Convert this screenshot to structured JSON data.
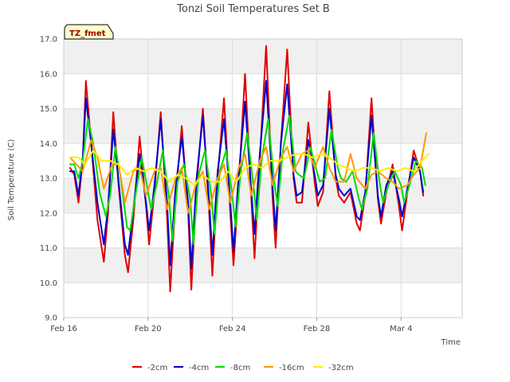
{
  "chart_data": {
    "type": "line",
    "title": "Tonzi Soil Temperatures Set B",
    "xlabel": "Time",
    "ylabel": "Soil Temperature (C)",
    "annotation": "TZ_fmet",
    "xlim": [
      0,
      18.9
    ],
    "ylim": [
      9.0,
      17.0
    ],
    "yticks": [
      {
        "value": 9.0,
        "label": "9.0"
      },
      {
        "value": 10.0,
        "label": "10.0"
      },
      {
        "value": 11.0,
        "label": "11.0"
      },
      {
        "value": 12.0,
        "label": "12.0"
      },
      {
        "value": 13.0,
        "label": "13.0"
      },
      {
        "value": 14.0,
        "label": "14.0"
      },
      {
        "value": 15.0,
        "label": "15.0"
      },
      {
        "value": 16.0,
        "label": "16.0"
      },
      {
        "value": 17.0,
        "label": "17.0"
      }
    ],
    "xticks": [
      {
        "value": 0,
        "label": "Feb 16"
      },
      {
        "value": 4,
        "label": "Feb 20"
      },
      {
        "value": 8,
        "label": "Feb 24"
      },
      {
        "value": 12,
        "label": "Feb 28"
      },
      {
        "value": 16,
        "label": "Mar 4"
      }
    ],
    "x_units": "days since Feb 16",
    "legend_position": "bottom",
    "grid": true,
    "series": [
      {
        "name": "-2cm",
        "color": "#e00000",
        "x": [
          0.3,
          0.5,
          0.7,
          0.9,
          1.05,
          1.3,
          1.6,
          1.9,
          2.1,
          2.35,
          2.6,
          2.9,
          3.05,
          3.3,
          3.6,
          3.9,
          4.05,
          4.3,
          4.6,
          4.9,
          5.05,
          5.3,
          5.6,
          5.9,
          6.05,
          6.3,
          6.6,
          6.9,
          7.05,
          7.3,
          7.6,
          7.9,
          8.05,
          8.3,
          8.6,
          8.9,
          9.05,
          9.3,
          9.6,
          9.9,
          10.05,
          10.3,
          10.6,
          10.9,
          11.05,
          11.3,
          11.6,
          11.9,
          12.05,
          12.3,
          12.6,
          12.9,
          13.05,
          13.3,
          13.6,
          13.9,
          14.05,
          14.3,
          14.6,
          14.9,
          15.05,
          15.3,
          15.6,
          15.9,
          16.05,
          16.3,
          16.6,
          16.9,
          17.05
        ],
        "values": [
          13.3,
          13.1,
          12.3,
          13.5,
          15.8,
          14.0,
          11.8,
          10.6,
          12.0,
          14.9,
          12.8,
          10.8,
          10.3,
          11.8,
          14.2,
          12.2,
          11.1,
          12.6,
          14.9,
          11.9,
          9.75,
          12.4,
          14.5,
          12.0,
          9.8,
          12.8,
          15.0,
          12.0,
          10.2,
          13.0,
          15.3,
          12.0,
          10.5,
          12.8,
          16.0,
          12.4,
          10.7,
          13.5,
          16.8,
          12.5,
          11.0,
          14.0,
          16.7,
          13.0,
          12.3,
          12.3,
          14.6,
          12.9,
          12.2,
          12.6,
          15.5,
          13.0,
          12.5,
          12.3,
          12.6,
          11.7,
          11.5,
          12.5,
          15.3,
          12.4,
          11.7,
          12.6,
          13.4,
          12.2,
          11.5,
          12.6,
          13.8,
          13.2,
          12.5
        ]
      },
      {
        "name": "-4cm",
        "color": "#0000cc",
        "x": [
          0.3,
          0.5,
          0.7,
          0.9,
          1.05,
          1.3,
          1.6,
          1.9,
          2.1,
          2.35,
          2.6,
          2.9,
          3.05,
          3.3,
          3.6,
          3.9,
          4.05,
          4.3,
          4.6,
          4.9,
          5.05,
          5.3,
          5.6,
          5.9,
          6.05,
          6.3,
          6.6,
          6.9,
          7.05,
          7.3,
          7.6,
          7.9,
          8.05,
          8.3,
          8.6,
          8.9,
          9.05,
          9.3,
          9.6,
          9.9,
          10.05,
          10.3,
          10.6,
          10.9,
          11.05,
          11.3,
          11.6,
          11.9,
          12.05,
          12.3,
          12.6,
          12.9,
          13.05,
          13.3,
          13.6,
          13.9,
          14.05,
          14.3,
          14.6,
          14.9,
          15.05,
          15.3,
          15.6,
          15.9,
          16.05,
          16.3,
          16.6,
          16.9,
          17.05
        ],
        "values": [
          13.2,
          13.2,
          12.5,
          13.6,
          15.3,
          14.0,
          12.3,
          11.1,
          12.2,
          14.4,
          12.9,
          11.1,
          10.8,
          12.1,
          13.7,
          12.3,
          11.5,
          12.8,
          14.7,
          12.3,
          10.5,
          12.7,
          14.2,
          12.3,
          10.4,
          13.0,
          14.8,
          12.3,
          10.8,
          13.2,
          14.7,
          12.3,
          10.9,
          13.1,
          15.2,
          12.6,
          11.4,
          13.7,
          15.8,
          12.8,
          11.5,
          14.0,
          15.7,
          13.1,
          12.5,
          12.6,
          14.1,
          13.1,
          12.5,
          12.8,
          15.0,
          13.1,
          12.7,
          12.5,
          12.7,
          11.9,
          11.8,
          12.6,
          14.8,
          12.5,
          11.9,
          12.8,
          13.2,
          12.4,
          11.9,
          12.7,
          13.6,
          13.2,
          12.6
        ]
      },
      {
        "name": "-8cm",
        "color": "#00dd00",
        "x": [
          0.3,
          0.5,
          0.7,
          0.9,
          1.15,
          1.4,
          1.7,
          2.0,
          2.2,
          2.45,
          2.7,
          3.0,
          3.15,
          3.4,
          3.7,
          4.0,
          4.15,
          4.4,
          4.7,
          5.0,
          5.15,
          5.4,
          5.7,
          6.0,
          6.15,
          6.4,
          6.7,
          7.0,
          7.15,
          7.4,
          7.7,
          8.0,
          8.15,
          8.4,
          8.7,
          9.0,
          9.15,
          9.4,
          9.7,
          10.0,
          10.15,
          10.4,
          10.7,
          11.0,
          11.15,
          11.4,
          11.7,
          12.0,
          12.15,
          12.4,
          12.7,
          13.0,
          13.15,
          13.4,
          13.7,
          14.0,
          14.15,
          14.4,
          14.7,
          15.0,
          15.15,
          15.4,
          15.7,
          16.0,
          16.15,
          16.4,
          16.7,
          17.0,
          17.15
        ],
        "values": [
          13.4,
          13.4,
          13.0,
          13.5,
          14.7,
          14.0,
          12.6,
          11.9,
          12.5,
          13.9,
          13.0,
          11.6,
          11.5,
          12.5,
          13.6,
          12.6,
          12.1,
          12.8,
          13.8,
          12.4,
          11.2,
          12.9,
          13.4,
          12.4,
          11.1,
          13.1,
          13.8,
          12.5,
          11.4,
          13.2,
          13.8,
          12.5,
          11.6,
          13.2,
          14.3,
          12.8,
          11.8,
          13.6,
          14.7,
          12.8,
          12.2,
          13.8,
          14.8,
          13.2,
          13.1,
          13.0,
          13.9,
          13.2,
          12.9,
          13.0,
          14.4,
          13.3,
          13.0,
          12.9,
          13.2,
          12.4,
          12.1,
          12.7,
          14.3,
          12.8,
          12.3,
          12.8,
          13.2,
          12.8,
          12.3,
          12.8,
          13.5,
          13.3,
          12.8
        ]
      },
      {
        "name": "-16cm",
        "color": "#ff9900",
        "x": [
          0.3,
          0.6,
          0.9,
          1.3,
          1.6,
          1.9,
          2.3,
          2.6,
          2.9,
          3.3,
          3.6,
          3.9,
          4.3,
          4.6,
          4.9,
          5.3,
          5.6,
          5.9,
          6.3,
          6.6,
          6.9,
          7.3,
          7.6,
          7.9,
          8.3,
          8.6,
          8.9,
          9.3,
          9.6,
          9.9,
          10.3,
          10.6,
          10.9,
          11.3,
          11.6,
          11.9,
          12.3,
          12.6,
          12.9,
          13.3,
          13.6,
          13.9,
          14.3,
          14.6,
          14.9,
          15.3,
          15.6,
          15.9,
          16.3,
          16.6,
          16.9,
          17.2
        ],
        "values": [
          13.6,
          13.4,
          13.2,
          14.1,
          13.6,
          12.7,
          13.4,
          13.4,
          12.3,
          13.2,
          13.3,
          12.5,
          13.2,
          13.3,
          12.1,
          13.0,
          13.3,
          12.0,
          12.9,
          13.2,
          12.1,
          13.0,
          13.4,
          12.3,
          13.3,
          13.7,
          12.5,
          13.5,
          13.9,
          12.8,
          13.6,
          13.9,
          13.2,
          13.7,
          13.8,
          13.3,
          13.9,
          13.3,
          12.9,
          12.9,
          13.7,
          13.0,
          12.7,
          13.1,
          13.2,
          13.0,
          12.9,
          12.7,
          12.8,
          13.1,
          13.3,
          14.3
        ]
      },
      {
        "name": "-32cm",
        "color": "#ffee00",
        "x": [
          0.3,
          0.7,
          1.0,
          1.4,
          1.8,
          2.2,
          2.6,
          3.0,
          3.4,
          3.8,
          4.2,
          4.6,
          5.0,
          5.4,
          5.8,
          6.2,
          6.6,
          7.0,
          7.4,
          7.8,
          8.2,
          8.6,
          9.0,
          9.4,
          9.8,
          10.2,
          10.6,
          11.0,
          11.4,
          11.8,
          12.2,
          12.6,
          13.0,
          13.4,
          13.8,
          14.2,
          14.6,
          15.0,
          15.4,
          15.8,
          16.2,
          16.6,
          17.0,
          17.3
        ],
        "values": [
          13.6,
          13.6,
          13.4,
          13.8,
          13.5,
          13.5,
          13.4,
          13.1,
          13.3,
          13.2,
          13.3,
          13.2,
          12.9,
          13.1,
          13.0,
          12.8,
          13.1,
          12.9,
          12.9,
          13.2,
          12.9,
          13.3,
          13.4,
          13.3,
          13.5,
          13.5,
          13.6,
          13.7,
          13.7,
          13.6,
          13.7,
          13.6,
          13.4,
          13.3,
          13.2,
          13.3,
          13.3,
          13.2,
          13.3,
          13.2,
          13.3,
          13.2,
          13.5,
          13.7
        ]
      }
    ]
  }
}
